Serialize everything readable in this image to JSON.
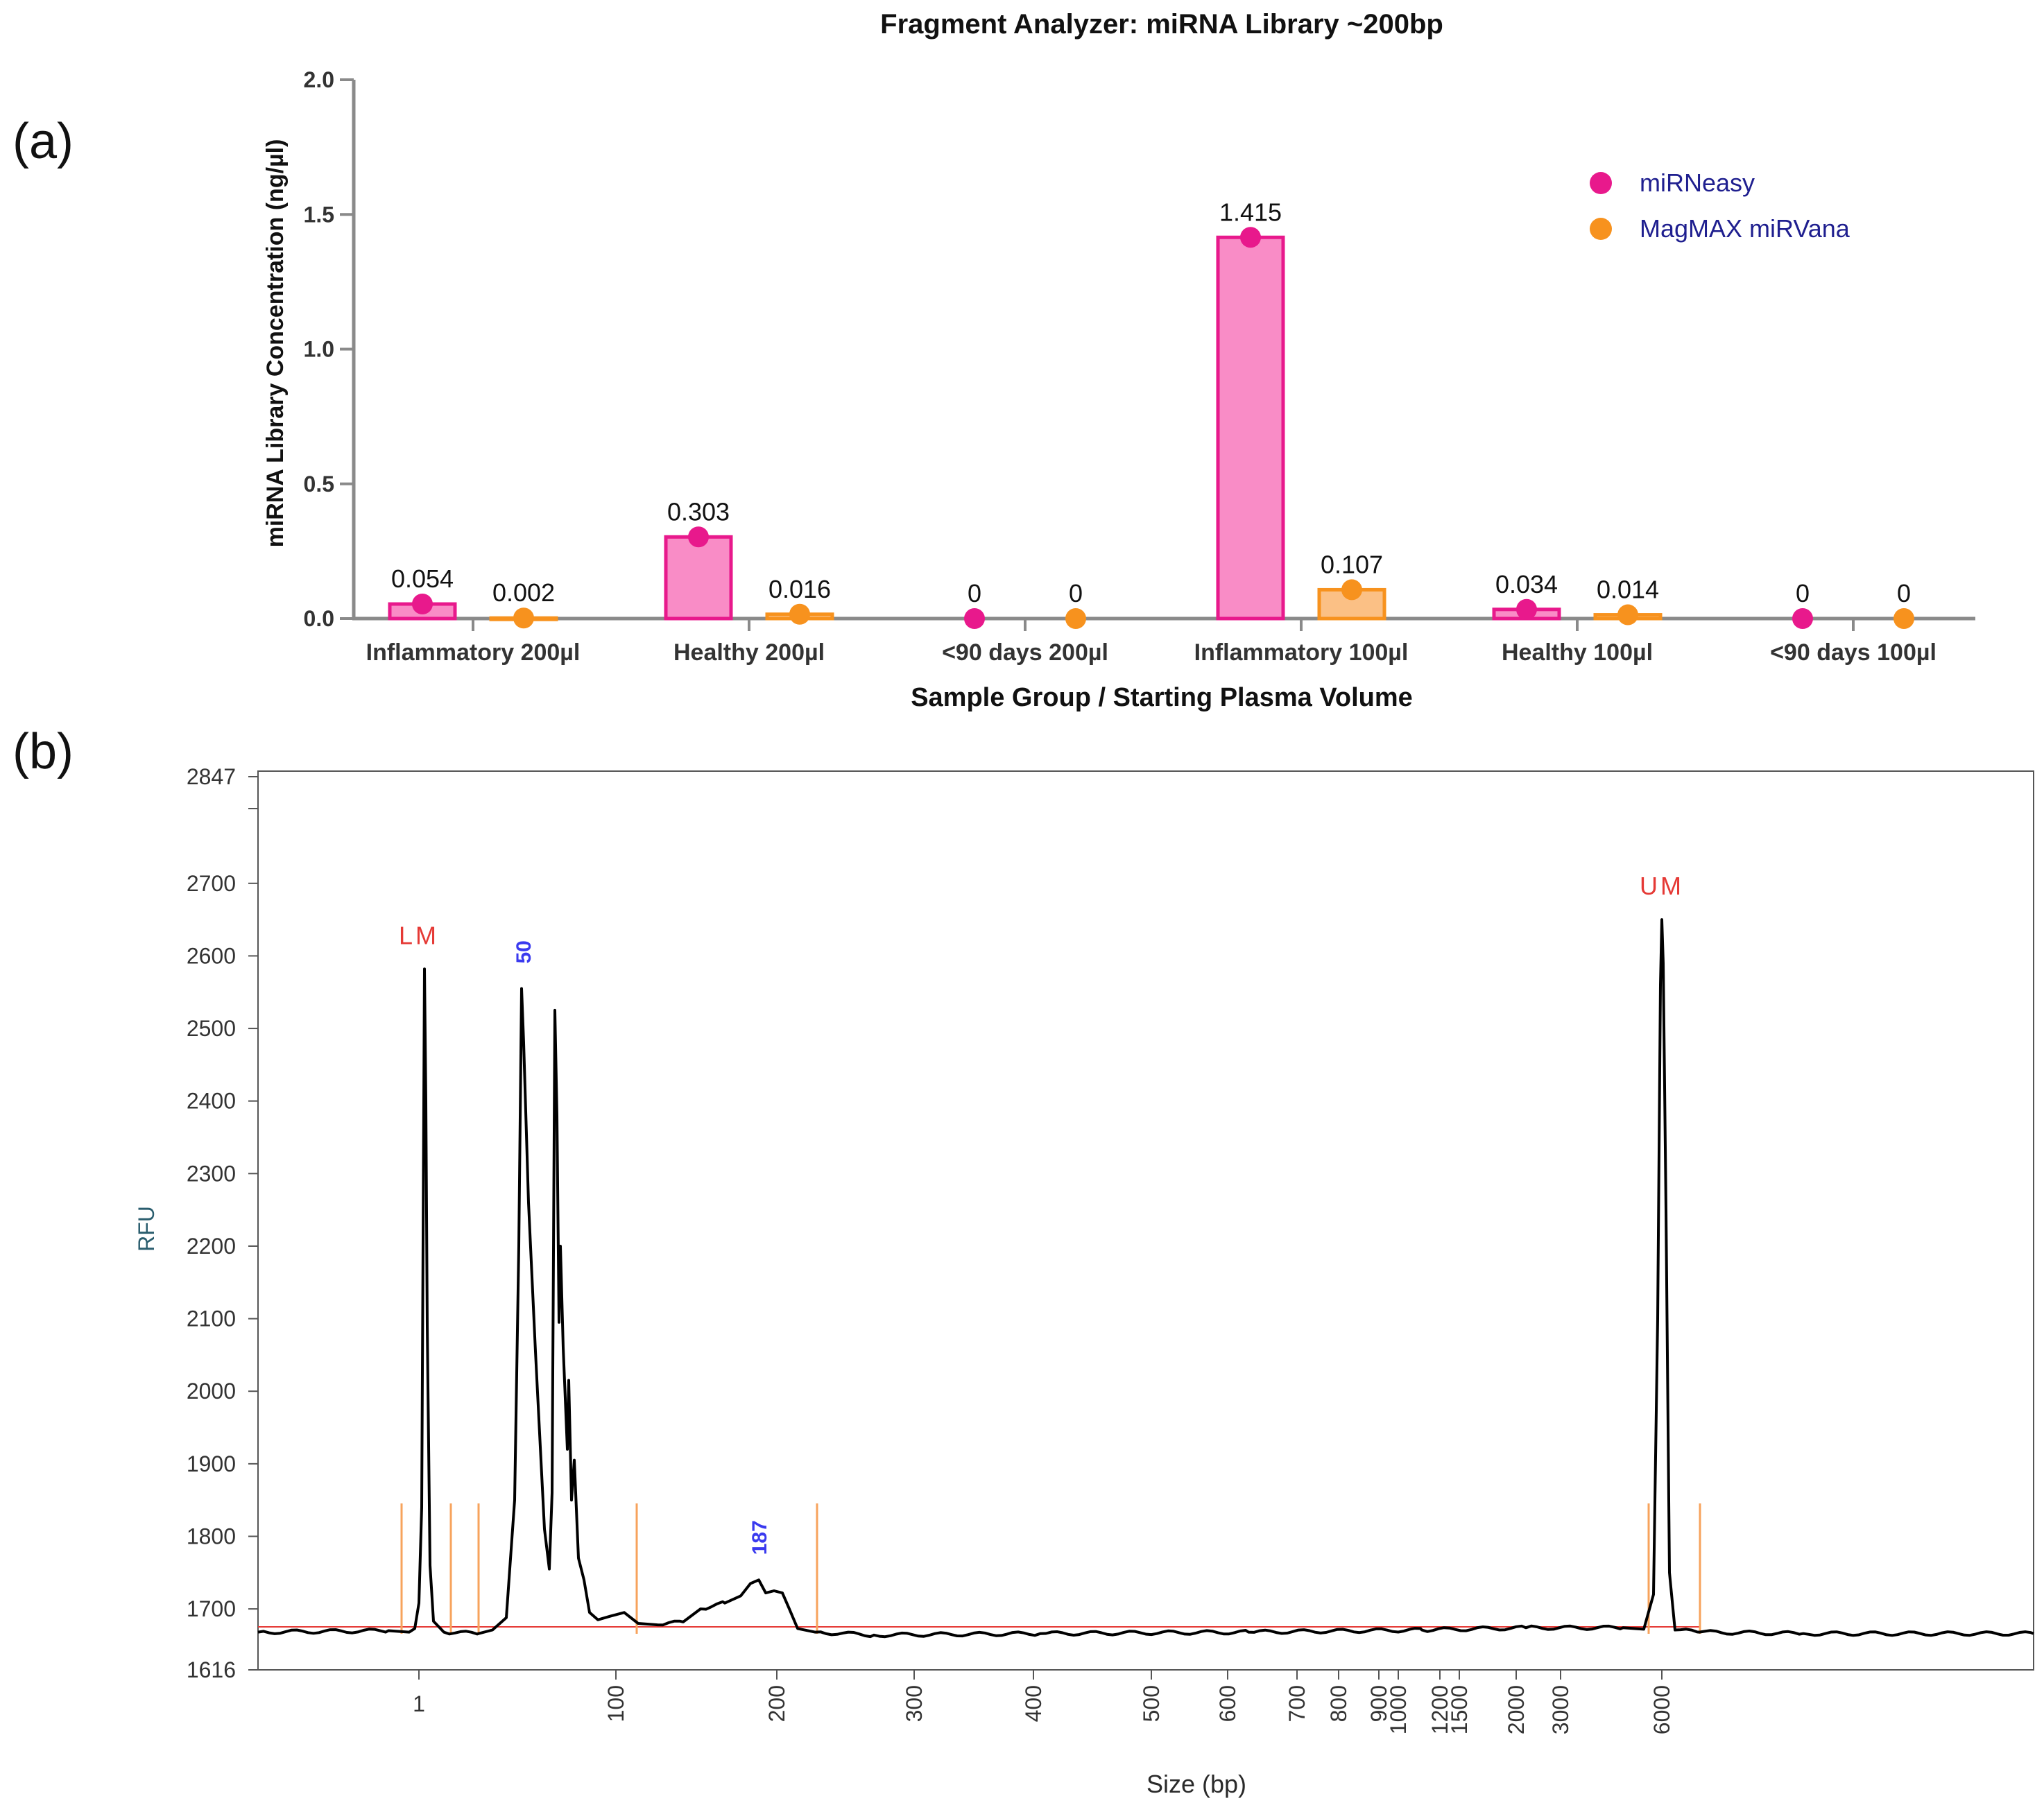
{
  "panel_a": {
    "label": "(a)",
    "chart_data": {
      "type": "bar",
      "title": "Fragment Analyzer: miRNA Library ~200bp",
      "xlabel": "Sample Group / Starting Plasma Volume",
      "ylabel": "miRNA Library Concentration (ng/µl)",
      "ylim": [
        0,
        2.0
      ],
      "yticks": [
        "0.0",
        "0.5",
        "1.0",
        "1.5",
        "2.0"
      ],
      "ytick_values": [
        0,
        0.5,
        1.0,
        1.5,
        2.0
      ],
      "categories": [
        "Inflammatory 200µl",
        "Healthy 200µl",
        "<90 days 200µl",
        "Inflammatory 100µl",
        "Healthy 100µl",
        "<90 days 100µl"
      ],
      "series": [
        {
          "name": "miRNeasy",
          "color": "#e8198c",
          "fill": "#f98cc6",
          "values": [
            0.054,
            0.303,
            0,
            1.415,
            0.034,
            0
          ],
          "labels": [
            "0.054",
            "0.303",
            "0",
            "1.415",
            "0.034",
            "0"
          ]
        },
        {
          "name": "MagMAX miRVana",
          "color": "#f7921e",
          "fill": "#fbc085",
          "values": [
            0.002,
            0.016,
            0,
            0.107,
            0.014,
            0
          ],
          "labels": [
            "0.002",
            "0.016",
            "0",
            "0.107",
            "0.014",
            "0"
          ]
        }
      ],
      "legend_position": "top-right",
      "legend_text_color": "#1f1f8f",
      "grid": false
    }
  },
  "panel_b": {
    "label": "(b)",
    "chart_data": {
      "type": "line",
      "title": "",
      "xlabel": "Size (bp)",
      "ylabel": "RFU",
      "ylim": [
        1616,
        2847
      ],
      "yticks": [
        "1616",
        "1700",
        "1800",
        "1900",
        "2000",
        "2100",
        "2200",
        "2300",
        "2400",
        "2500",
        "2600",
        "2700",
        "2847"
      ],
      "ytick_values": [
        1616,
        1700,
        1800,
        1900,
        2000,
        2100,
        2200,
        2300,
        2400,
        2500,
        2600,
        2700,
        2847
      ],
      "x_scale": "nonlinear (electropherogram)",
      "xticks": [
        "1",
        "100",
        "200",
        "300",
        "400",
        "500",
        "600",
        "700",
        "800",
        "900",
        "1000",
        "1200",
        "1500",
        "2000",
        "3000",
        "6000"
      ],
      "peak_labels": [
        {
          "text": "LM",
          "color": "#e53935",
          "x_bp": 1,
          "rfu": 2582
        },
        {
          "text": "50",
          "color": "#3a3aef",
          "x_bp": 50,
          "rfu": 2555
        },
        {
          "text": "187",
          "color": "#3a3aef",
          "x_bp": 187,
          "rfu": 1740
        },
        {
          "text": "UM",
          "color": "#e53935",
          "x_bp": 6000,
          "rfu": 2650
        }
      ],
      "baseline_rfu": 1668,
      "trace_color": "#000000",
      "baseline_color": "#e53935",
      "marker_color": "#f7a35c"
    }
  }
}
